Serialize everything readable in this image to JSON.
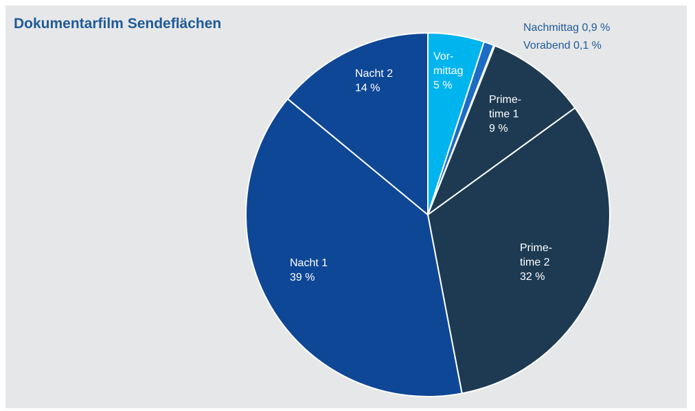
{
  "chart_data": {
    "type": "pie",
    "title": "Dokumentarfilm Sendeflächen",
    "categories": [
      "Vor-mittag",
      "Nachmittag",
      "Vorabend",
      "Prime-time 1",
      "Prime-time 2",
      "Nacht 1",
      "Nacht 2"
    ],
    "values": [
      5,
      0.9,
      0.1,
      9,
      32,
      39,
      14
    ],
    "value_labels": [
      "5 %",
      "0,9 %",
      "0,1 %",
      "9 %",
      "32 %",
      "39 %",
      "14 %"
    ],
    "colors": [
      "#00b4ee",
      "#1d6cc2",
      "#174d8c",
      "#1d3a52",
      "#1d3a52",
      "#0f4797",
      "#0f4797"
    ]
  }
}
